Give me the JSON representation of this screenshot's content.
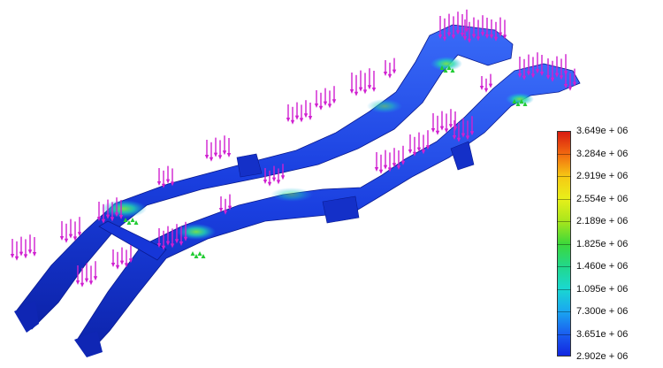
{
  "viewport": {
    "model": "chassis-frame",
    "result": "stress-contour",
    "load_marker_color": "#d020d0",
    "constraint_marker_color": "#22cc33",
    "frame_base_color": "#1a3fe0"
  },
  "legend": {
    "labels": [
      "3.649e + 06",
      "3.284e + 06",
      "2.919e + 06",
      "2.554e + 06",
      "2.189e + 06",
      "1.825e + 06",
      "1.460e + 06",
      "1.095e + 06",
      "7.300e + 06",
      "3.651e + 06",
      "2.902e + 06"
    ],
    "colors": [
      "#d81b10",
      "#f26a10",
      "#f6c914",
      "#e8f01a",
      "#a8e61c",
      "#3dd83a",
      "#22d88a",
      "#1ad8d0",
      "#1aa8f0",
      "#1a60f0",
      "#1226e0"
    ]
  }
}
